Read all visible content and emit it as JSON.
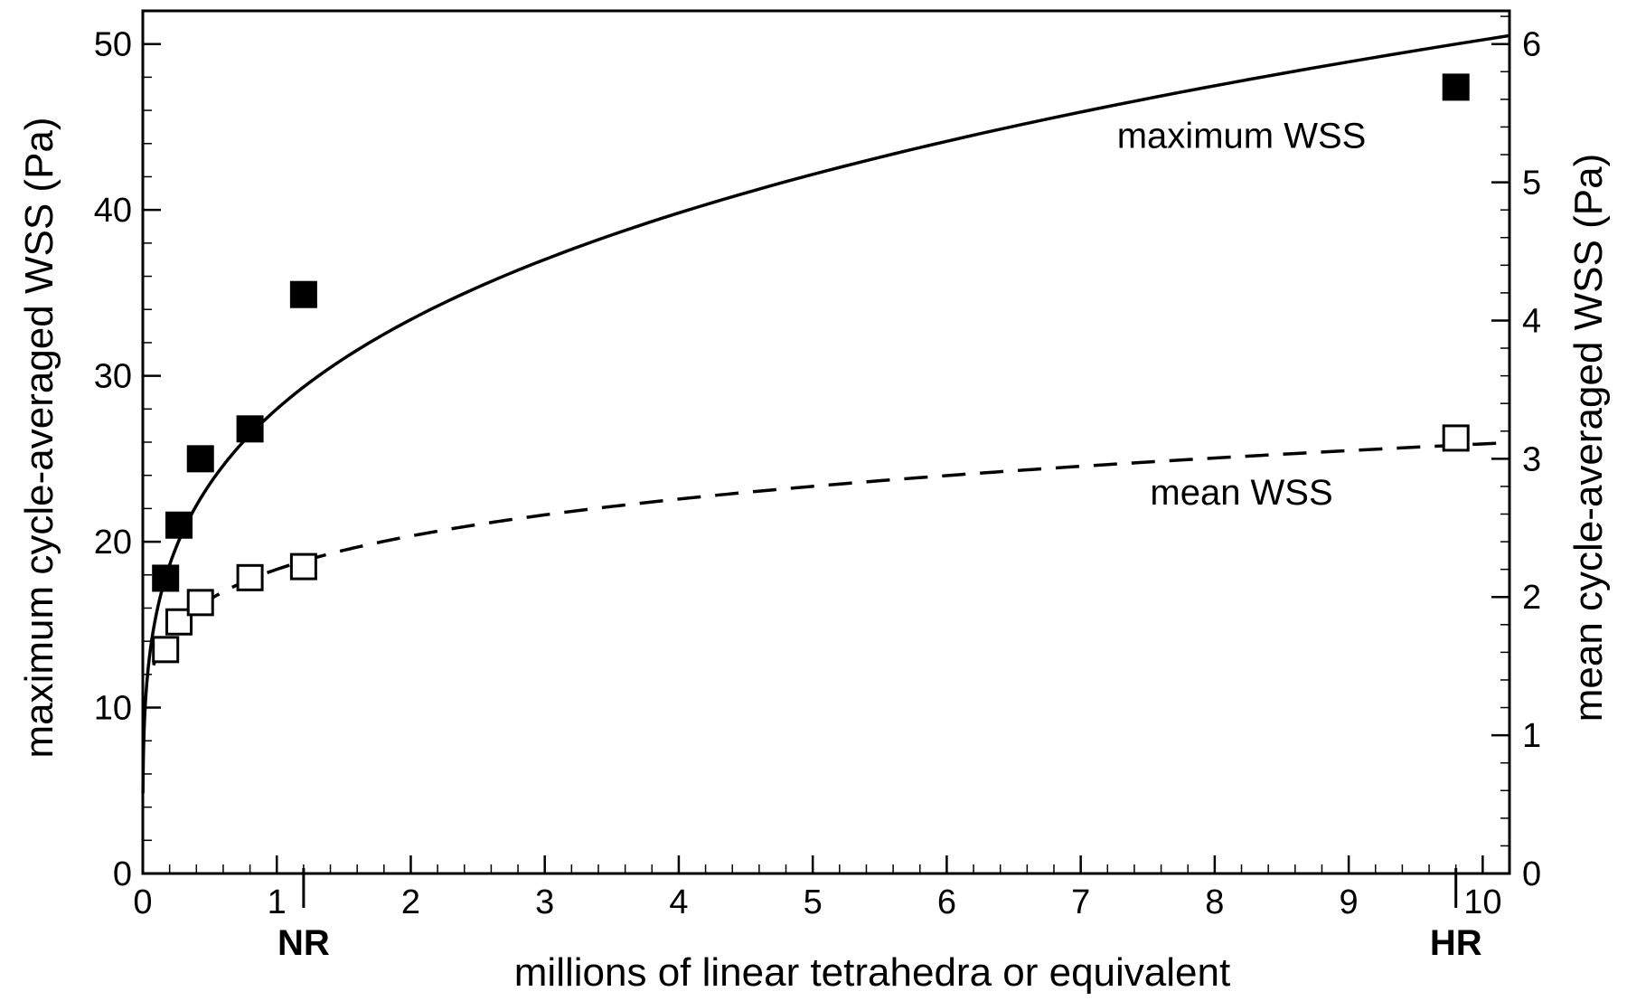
{
  "chart_data": {
    "type": "scatter",
    "xlabel": "millions of linear tetrahedra or equivalent",
    "ylabel_left": "maximum cycle-averaged WSS (Pa)",
    "ylabel_right": "mean cycle-averaged WSS (Pa)",
    "xlim": [
      0,
      10.2
    ],
    "ylim_left": [
      0,
      52
    ],
    "ylim_right": [
      0,
      6.24
    ],
    "x_ticks": [
      0,
      1,
      2,
      3,
      4,
      5,
      6,
      7,
      8,
      9,
      10
    ],
    "y_ticks_left": [
      0,
      10,
      20,
      30,
      40,
      50
    ],
    "y_ticks_right": [
      0,
      1,
      2,
      3,
      4,
      5,
      6
    ],
    "x_markers": [
      {
        "label": "NR",
        "x": 1.2
      },
      {
        "label": "HR",
        "x": 9.8
      }
    ],
    "series": [
      {
        "name": "maximum WSS",
        "axis": "left",
        "marker": "filled-square",
        "x": [
          0.17,
          0.27,
          0.43,
          0.8,
          1.2,
          9.8
        ],
        "y": [
          17.8,
          21.0,
          25.0,
          26.8,
          34.9,
          47.4
        ]
      },
      {
        "name": "mean WSS",
        "axis": "right",
        "marker": "open-square",
        "x": [
          0.17,
          0.27,
          0.43,
          0.8,
          1.2,
          9.8
        ],
        "y": [
          1.62,
          1.82,
          1.96,
          2.14,
          2.22,
          3.15
        ]
      }
    ],
    "fits": [
      {
        "series": "maximum WSS",
        "style": "solid",
        "axis": "left",
        "form": "a*x^b",
        "a": 28.0,
        "b": 0.254,
        "x_range": [
          0.001,
          10.2
        ]
      },
      {
        "series": "mean WSS",
        "style": "dashed",
        "axis": "right",
        "form": "a*x^b",
        "a": 2.2,
        "b": 0.15,
        "x_range": [
          0.08,
          10.2
        ]
      }
    ],
    "annotations": [
      {
        "text": "maximum WSS",
        "x": 8.2,
        "y_left": 44.5
      },
      {
        "text": "mean WSS",
        "x": 8.2,
        "y_left": 23.0
      }
    ],
    "grid": false,
    "legend": "none"
  }
}
